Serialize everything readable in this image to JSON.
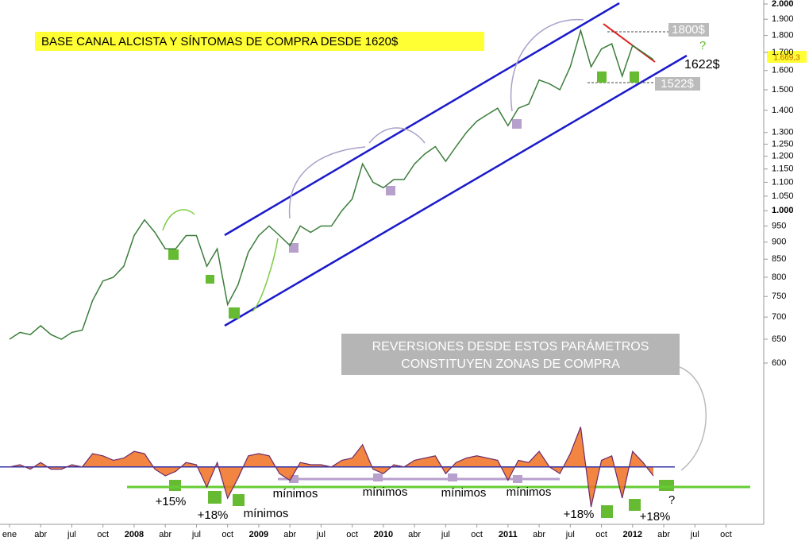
{
  "chart_data": [
    {
      "type": "line",
      "title": "BASE CANAL ALCISTA Y SÍNTOMAS DE COMPRA DESDE 1620$",
      "log_scale": true,
      "categories": [
        "ene",
        null,
        null,
        "abr",
        null,
        null,
        "jul",
        null,
        null,
        "oct",
        null,
        null,
        "2008",
        null,
        null,
        "abr",
        null,
        null,
        "jul",
        null,
        null,
        "oct",
        null,
        null,
        "2009",
        null,
        null,
        "abr",
        null,
        null,
        "jul",
        null,
        null,
        "oct",
        null,
        null,
        "2010",
        null,
        null,
        "abr",
        null,
        null,
        "jul",
        null,
        null,
        "oct",
        null,
        null,
        "2011",
        null,
        null,
        "abr",
        null,
        null,
        "jul",
        null,
        null,
        "oct",
        null,
        null,
        "2012",
        null,
        null,
        "abr",
        null,
        null,
        "jul",
        null,
        null,
        "oct",
        null,
        null
      ],
      "values": [
        650,
        665,
        660,
        680,
        660,
        650,
        665,
        670,
        740,
        790,
        800,
        830,
        920,
        970,
        930,
        880,
        880,
        920,
        920,
        830,
        880,
        730,
        780,
        870,
        920,
        950,
        920,
        890,
        950,
        930,
        950,
        950,
        1000,
        1040,
        1170,
        1100,
        1080,
        1110,
        1110,
        1170,
        1210,
        1240,
        1180,
        1240,
        1300,
        1350,
        1380,
        1410,
        1330,
        1410,
        1430,
        1550,
        1530,
        1500,
        1620,
        1830,
        1620,
        1720,
        1750,
        1570,
        1740,
        1700,
        1660,
        null,
        null,
        null,
        null,
        null,
        null,
        null,
        null,
        null
      ],
      "color": "#3a7d3a",
      "ylim": [
        600,
        2000
      ],
      "yticks": [
        {
          "value": 2000,
          "label": "2.000"
        },
        {
          "value": 1900,
          "label": "1.900"
        },
        {
          "value": 1800,
          "label": "1.800"
        },
        {
          "value": 1700,
          "label": "1.700"
        },
        {
          "value": 1600,
          "label": "1.600"
        },
        {
          "value": 1500,
          "label": "1.500"
        },
        {
          "value": 1400,
          "label": "1.400"
        },
        {
          "value": 1300,
          "label": "1.300"
        },
        {
          "value": 1250,
          "label": "1.250"
        },
        {
          "value": 1200,
          "label": "1.200"
        },
        {
          "value": 1150,
          "label": "1.150"
        },
        {
          "value": 1100,
          "label": "1.100"
        },
        {
          "value": 1050,
          "label": "1.050"
        },
        {
          "value": 1000,
          "label": "1.000"
        },
        950,
        900,
        850,
        800,
        750,
        700,
        650,
        600
      ],
      "last_value": {
        "value": 1669.3,
        "label": "1.669,3"
      },
      "price_labels": [
        "1800$",
        "1622$",
        "1522$",
        "?"
      ],
      "note": [
        "REVERSIONES DESDE ESTOS PARÁMETROS",
        "CONSTITUYEN ZONAS DE COMPRA"
      ]
    },
    {
      "type": "area",
      "values": [
        0,
        1,
        -1,
        2,
        -1,
        -1,
        1,
        0,
        6,
        5,
        3,
        4,
        7,
        6,
        -1,
        -4,
        -2,
        2,
        1,
        -9,
        2,
        -14,
        -5,
        5,
        6,
        5,
        -3,
        -6,
        2,
        1,
        1,
        0,
        3,
        4,
        10,
        -1,
        -3,
        1,
        0,
        3,
        4,
        5,
        -3,
        2,
        4,
        5,
        4,
        3,
        -6,
        3,
        2,
        7,
        0,
        -3,
        6,
        18,
        -18,
        3,
        5,
        -14,
        7,
        2,
        -4,
        null,
        null,
        null,
        null,
        null,
        null,
        null,
        null,
        null
      ],
      "color": "#6a2a6a",
      "fill_color": "#f07020",
      "ylim": [
        -24,
        36
      ],
      "reference_line": -9,
      "annotations": [
        "+15%",
        "+18%",
        "mínimos",
        "mínimos",
        "mínimos",
        "mínimos",
        "mínimos",
        "+18%",
        "+18%",
        "?"
      ]
    }
  ]
}
